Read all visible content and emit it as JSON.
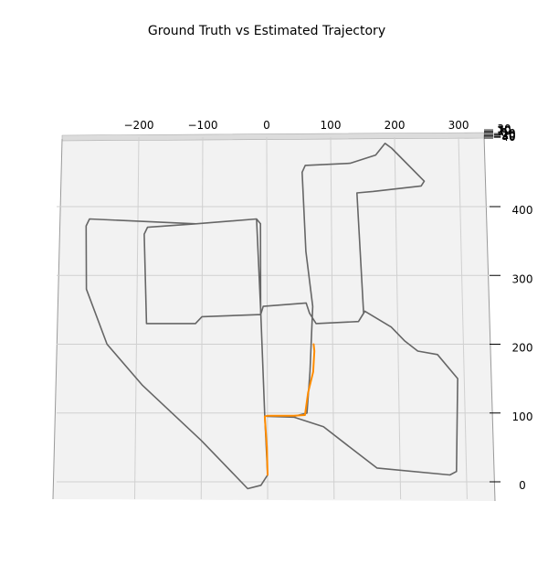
{
  "chart_data": {
    "type": "line",
    "projection": "3d",
    "title": "Ground Truth vs Estimated Trajectory",
    "xlabel": "",
    "ylabel": "",
    "zlabel": "",
    "grid": true,
    "xlim": [
      -300,
      330
    ],
    "ylim": [
      -20,
      500
    ],
    "x_ticks": [
      -200,
      -100,
      0,
      100,
      200,
      300
    ],
    "y_ticks": [
      0,
      100,
      200,
      300,
      400
    ],
    "z_tick_labels": [
      "30",
      "20",
      "10",
      "0",
      "−10",
      "−20",
      "−30",
      "−40"
    ],
    "series": [
      {
        "color": "#666666",
        "points": [
          [
            0,
            10
          ],
          [
            -4,
            95
          ],
          [
            -10,
            250
          ],
          [
            -16,
            382
          ],
          [
            -110,
            375
          ],
          [
            -185,
            370
          ],
          [
            -190,
            360
          ],
          [
            -185,
            230
          ],
          [
            -110,
            230
          ],
          [
            -100,
            240
          ],
          [
            -10,
            243
          ],
          [
            -6,
            255
          ],
          [
            60,
            260
          ],
          [
            65,
            245
          ],
          [
            75,
            230
          ],
          [
            140,
            233
          ],
          [
            148,
            245
          ],
          [
            140,
            420
          ],
          [
            165,
            422
          ],
          [
            240,
            430
          ],
          [
            245,
            437
          ],
          [
            195,
            485
          ],
          [
            185,
            492
          ],
          [
            170,
            475
          ],
          [
            130,
            463
          ],
          [
            60,
            460
          ],
          [
            55,
            450
          ],
          [
            60,
            335
          ],
          [
            70,
            255
          ],
          [
            65,
            160
          ],
          [
            60,
            100
          ],
          [
            40,
            95
          ],
          [
            0,
            95
          ],
          [
            40,
            94
          ],
          [
            85,
            80
          ],
          [
            125,
            50
          ],
          [
            165,
            20
          ],
          [
            275,
            10
          ],
          [
            285,
            15
          ],
          [
            290,
            150
          ],
          [
            260,
            185
          ],
          [
            230,
            190
          ],
          [
            210,
            205
          ],
          [
            190,
            225
          ],
          [
            150,
            248
          ],
          [
            140,
            233
          ],
          [
            75,
            230
          ],
          [
            65,
            245
          ],
          [
            60,
            260
          ],
          [
            -6,
            255
          ],
          [
            -10,
            243
          ],
          [
            -10,
            375
          ],
          [
            -16,
            382
          ],
          [
            -110,
            375
          ],
          [
            -275,
            382
          ],
          [
            -280,
            372
          ],
          [
            -278,
            280
          ],
          [
            -245,
            200
          ],
          [
            -190,
            140
          ],
          [
            -100,
            60
          ],
          [
            -30,
            -10
          ],
          [
            -10,
            -5
          ],
          [
            0,
            10
          ]
        ]
      },
      {
        "color": "#ff8c00",
        "points": [
          [
            0,
            10
          ],
          [
            -1,
            50
          ],
          [
            -4,
            95
          ],
          [
            0,
            96
          ],
          [
            40,
            96
          ],
          [
            57,
            97
          ],
          [
            62,
            130
          ],
          [
            70,
            160
          ],
          [
            72,
            190
          ],
          [
            71,
            200
          ]
        ]
      }
    ]
  }
}
